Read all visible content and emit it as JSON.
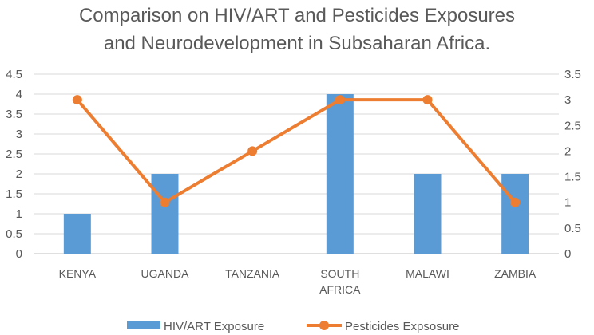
{
  "chart_data": {
    "type": "bar+line",
    "title_lines": [
      "Comparison on HIV/ART and Pesticides Exposures",
      "and Neurodevelopment  in Subsaharan Africa."
    ],
    "categories": [
      [
        "KENYA"
      ],
      [
        "UGANDA"
      ],
      [
        "TANZANIA"
      ],
      [
        "SOUTH",
        "AFRICA"
      ],
      [
        "MALAWI"
      ],
      [
        "ZAMBIA"
      ]
    ],
    "series": [
      {
        "name": "HIV/ART Exposure",
        "type": "bar",
        "axis": "left",
        "color": "#5B9BD5",
        "values": [
          1,
          2,
          0,
          4,
          2,
          2
        ]
      },
      {
        "name": "Pesticides Expsosure",
        "type": "line",
        "axis": "right",
        "color": "#ED7D31",
        "values": [
          3,
          1,
          2,
          3,
          3,
          1
        ]
      }
    ],
    "y_left": {
      "min": 0,
      "max": 4.5,
      "ticks": [
        "0",
        "0.5",
        "1",
        "1.5",
        "2",
        "2.5",
        "3",
        "3.5",
        "4",
        "4.5"
      ]
    },
    "y_right": {
      "min": 0,
      "max": 3.5,
      "ticks": [
        "0",
        "0.5",
        "1",
        "1.5",
        "2",
        "2.5",
        "3",
        "3.5"
      ]
    },
    "grid": true,
    "legend_position": "bottom"
  }
}
